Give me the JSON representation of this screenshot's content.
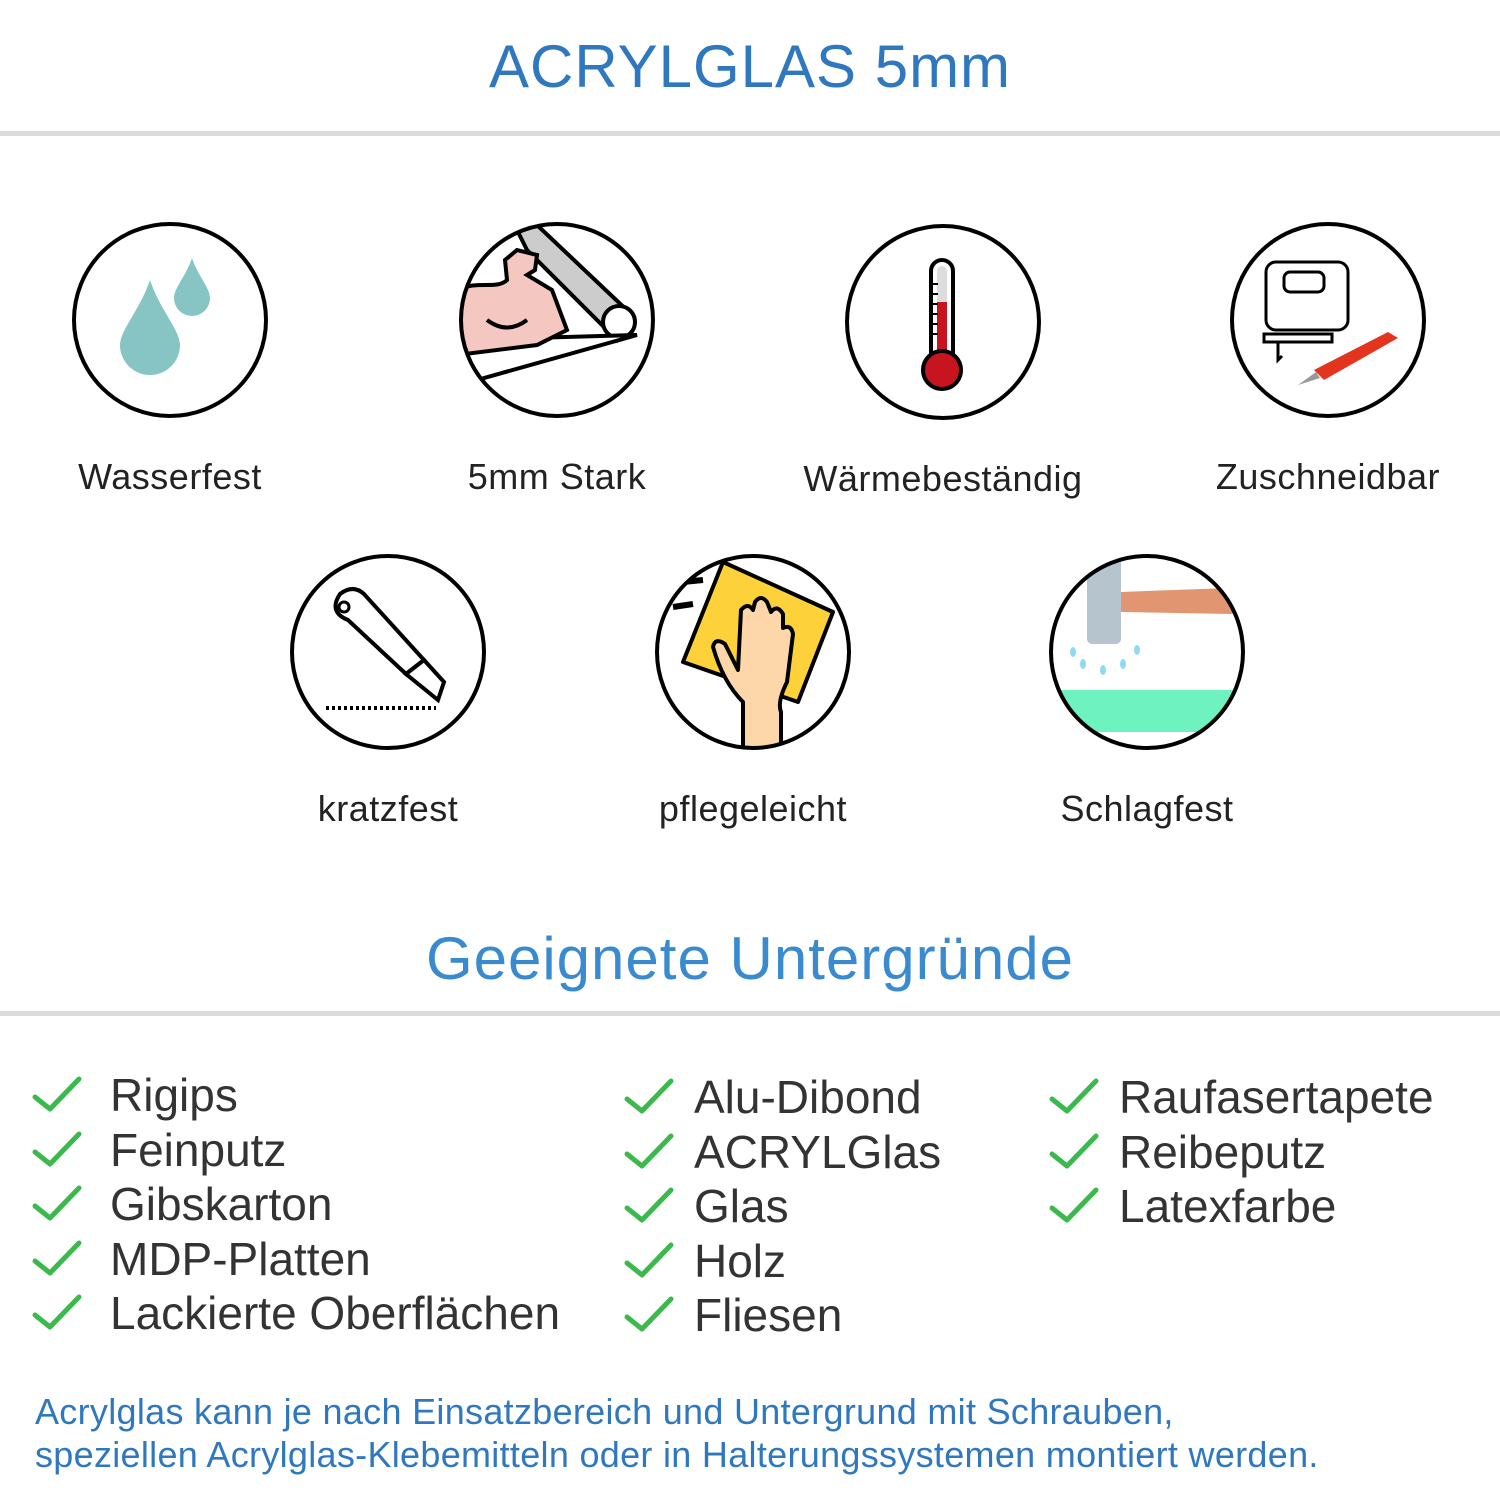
{
  "header": {
    "title": "ACRYLGLAS 5mm"
  },
  "features": [
    {
      "label": "Wasserfest",
      "icon": "water-drops-icon"
    },
    {
      "label": "5mm Stark",
      "icon": "strong-arm-icon"
    },
    {
      "label": "Wärmebeständig",
      "icon": "thermometer-icon"
    },
    {
      "label": "Zuschneidbar",
      "icon": "jigsaw-knife-icon"
    },
    {
      "label": "kratzfest",
      "icon": "cutter-knife-icon"
    },
    {
      "label": "pflegeleicht",
      "icon": "hand-cloth-icon"
    },
    {
      "label": "Schlagfest",
      "icon": "hammer-icon"
    }
  ],
  "surfaces": {
    "heading": "Geeignete Untergründe",
    "columns": [
      [
        "Rigips",
        "Feinputz",
        "Gibskarton",
        "MDP-Platten",
        "Lackierte Oberflächen"
      ],
      [
        "Alu-Dibond",
        "ACRYLGlas",
        "Glas",
        "Holz",
        "Fliesen"
      ],
      [
        "Raufasertapete",
        "Reibeputz",
        "Latexfarbe"
      ]
    ]
  },
  "footer": {
    "line1": "Acrylglas kann je nach Einsatzbereich und Untergrund mit Schrauben,",
    "line2": "speziellen Acrylglas-Klebemitteln oder in Halterungssystemen montiert werden."
  },
  "colors": {
    "title": "#2f78bf",
    "heading": "#3a8ad0",
    "check": "#3cb94c",
    "divider": "#dcdcdc"
  }
}
